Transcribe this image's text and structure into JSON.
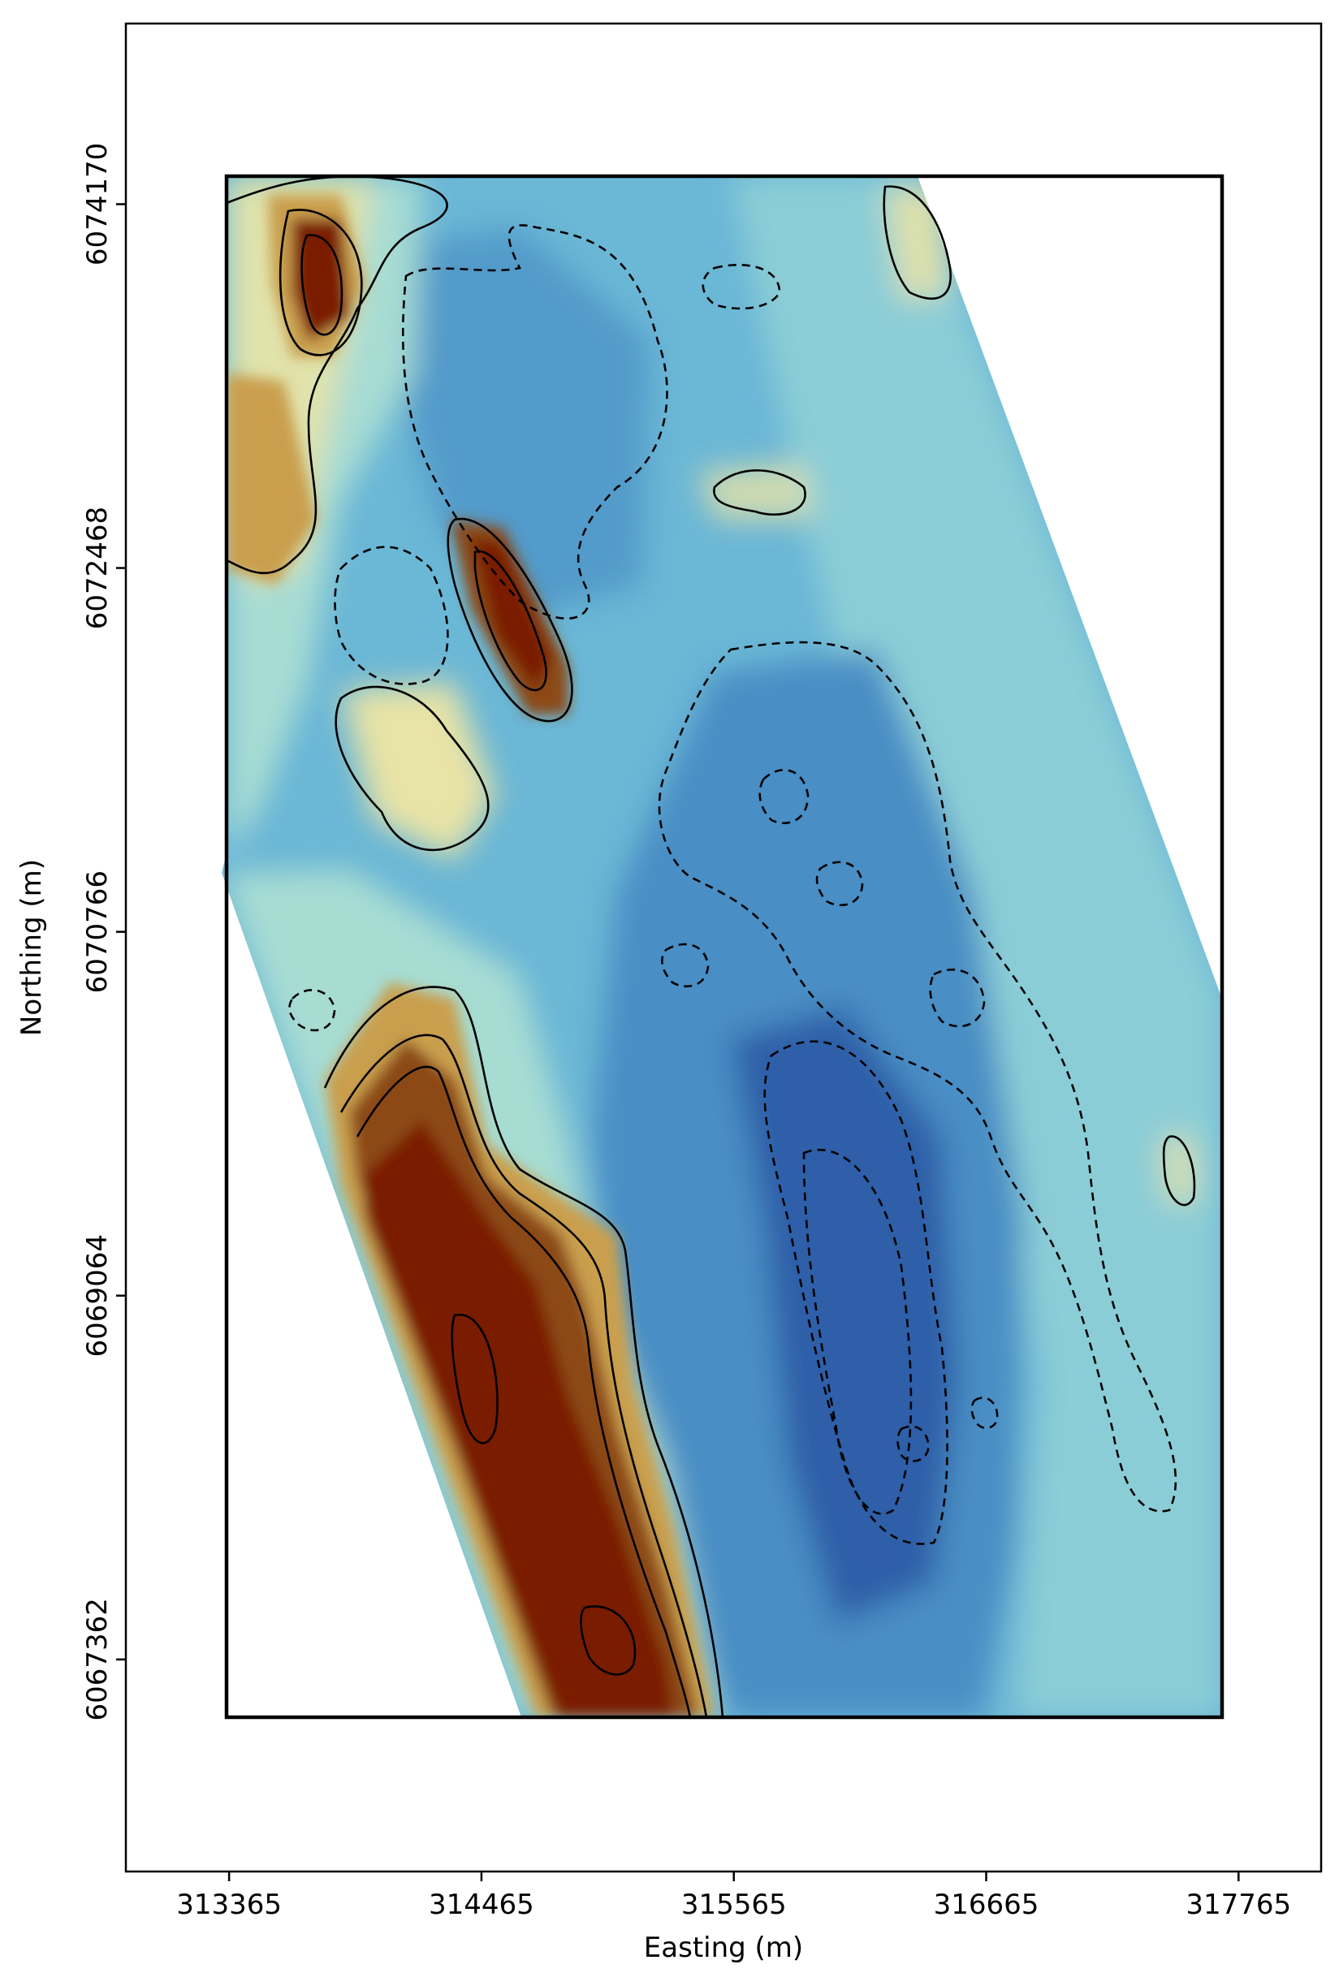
{
  "chart_data": {
    "type": "heatmap",
    "title": "",
    "xlabel": "Easting (m)",
    "ylabel": "Northing (m)",
    "x_ticks": [
      "313365",
      "314465",
      "315565",
      "316665",
      "317765"
    ],
    "y_ticks": [
      "6067362",
      "6069064",
      "6070766",
      "6072468",
      "6074170"
    ],
    "x_tick_values": [
      313365,
      314465,
      315565,
      316665,
      317765
    ],
    "y_tick_values": [
      6067362,
      6069064,
      6070766,
      6072468,
      6074170
    ],
    "xlim": [
      312915,
      318125
    ],
    "ylim": [
      6066370,
      6075015
    ],
    "survey_box": {
      "x": [
        313365,
        317765
      ],
      "y": [
        6067362,
        6074170
      ]
    },
    "colormap": [
      "#2e5fa8",
      "#4a8ec4",
      "#6bb7d6",
      "#a7dcd3",
      "#e8e3a6",
      "#c99f4e",
      "#8c4a14",
      "#7a1a05"
    ],
    "colorbar": "none",
    "grid": false,
    "contours": "solid lines = positive levels, dashed lines = negative levels"
  }
}
